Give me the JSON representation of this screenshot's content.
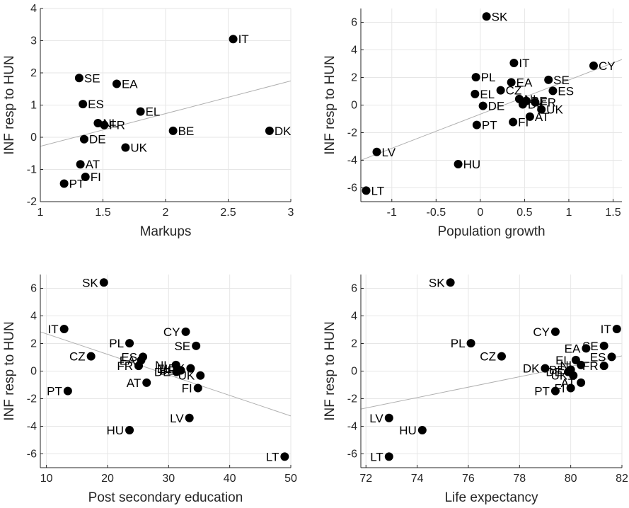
{
  "chart_data": [
    {
      "type": "scatter",
      "xlabel": "Markups",
      "ylabel": "INF resp to HUN",
      "xlim": [
        1,
        3
      ],
      "ylim": [
        -2,
        4
      ],
      "xticks": [
        1,
        1.5,
        2,
        2.5,
        3
      ],
      "yticks": [
        -2,
        -1,
        0,
        1,
        2,
        3,
        4
      ],
      "xtick_labels": [
        "1",
        "1.5",
        "2",
        "2.5",
        "3"
      ],
      "ytick_labels": [
        "-2",
        "-1",
        "0",
        "1",
        "2",
        "3",
        "4"
      ],
      "grid": true,
      "fit_line": [
        [
          1,
          -0.28
        ],
        [
          3,
          1.75
        ]
      ],
      "points": [
        {
          "label": "IT",
          "x": 2.54,
          "y": 3.05,
          "pos": "right"
        },
        {
          "label": "SE",
          "x": 1.31,
          "y": 1.84,
          "pos": "right"
        },
        {
          "label": "EA",
          "x": 1.61,
          "y": 1.66,
          "pos": "right"
        },
        {
          "label": "ES",
          "x": 1.34,
          "y": 1.03,
          "pos": "right"
        },
        {
          "label": "EL",
          "x": 1.8,
          "y": 0.8,
          "pos": "right"
        },
        {
          "label": "NL",
          "x": 1.46,
          "y": 0.44,
          "pos": "right"
        },
        {
          "label": "FR",
          "x": 1.51,
          "y": 0.38,
          "pos": "right"
        },
        {
          "label": "BE",
          "x": 2.06,
          "y": 0.2,
          "pos": "right"
        },
        {
          "label": "DK",
          "x": 2.83,
          "y": 0.2,
          "pos": "right"
        },
        {
          "label": "DE",
          "x": 1.35,
          "y": -0.06,
          "pos": "right"
        },
        {
          "label": "UK",
          "x": 1.68,
          "y": -0.32,
          "pos": "right"
        },
        {
          "label": "AT",
          "x": 1.32,
          "y": -0.84,
          "pos": "right"
        },
        {
          "label": "FI",
          "x": 1.36,
          "y": -1.23,
          "pos": "right"
        },
        {
          "label": "PT",
          "x": 1.19,
          "y": -1.44,
          "pos": "right"
        }
      ]
    },
    {
      "type": "scatter",
      "xlabel": "Population growth",
      "ylabel": "INF resp to HUN",
      "xlim": [
        -1.35,
        1.6
      ],
      "ylim": [
        -7,
        7
      ],
      "xticks": [
        -1,
        -0.5,
        0,
        0.5,
        1,
        1.5
      ],
      "yticks": [
        -6,
        -4,
        -2,
        0,
        2,
        4,
        6
      ],
      "xtick_labels": [
        "-1",
        "-0.5",
        "0",
        "0.5",
        "1",
        "1.5"
      ],
      "ytick_labels": [
        "-6",
        "-4",
        "-2",
        "0",
        "2",
        "4",
        "6"
      ],
      "grid": true,
      "fit_line": [
        [
          -1.35,
          -4.0
        ],
        [
          1.6,
          3.3
        ]
      ],
      "points": [
        {
          "label": "SK",
          "x": 0.07,
          "y": 6.42,
          "pos": "right"
        },
        {
          "label": "IT",
          "x": 0.38,
          "y": 3.05,
          "pos": "right"
        },
        {
          "label": "CY",
          "x": 1.28,
          "y": 2.85,
          "pos": "right"
        },
        {
          "label": "PL",
          "x": -0.05,
          "y": 2.02,
          "pos": "right"
        },
        {
          "label": "SE",
          "x": 0.77,
          "y": 1.83,
          "pos": "right"
        },
        {
          "label": "EA",
          "x": 0.35,
          "y": 1.65,
          "pos": "right"
        },
        {
          "label": "CZ",
          "x": 0.23,
          "y": 1.07,
          "pos": "right"
        },
        {
          "label": "ES",
          "x": 0.82,
          "y": 1.03,
          "pos": "right"
        },
        {
          "label": "EL",
          "x": -0.06,
          "y": 0.8,
          "pos": "right"
        },
        {
          "label": "NL",
          "x": 0.44,
          "y": 0.44,
          "pos": "right"
        },
        {
          "label": "BE",
          "x": 0.52,
          "y": 0.3,
          "pos": "right"
        },
        {
          "label": "FR",
          "x": 0.62,
          "y": 0.2,
          "pos": "right"
        },
        {
          "label": "DK",
          "x": 0.48,
          "y": 0.05,
          "pos": "right"
        },
        {
          "label": "DE",
          "x": 0.03,
          "y": -0.06,
          "pos": "right"
        },
        {
          "label": "UK",
          "x": 0.69,
          "y": -0.32,
          "pos": "right"
        },
        {
          "label": "AT",
          "x": 0.56,
          "y": -0.84,
          "pos": "right"
        },
        {
          "label": "FI",
          "x": 0.37,
          "y": -1.23,
          "pos": "right"
        },
        {
          "label": "PT",
          "x": -0.04,
          "y": -1.44,
          "pos": "right"
        },
        {
          "label": "LV",
          "x": -1.17,
          "y": -3.4,
          "pos": "right"
        },
        {
          "label": "HU",
          "x": -0.25,
          "y": -4.28,
          "pos": "right"
        },
        {
          "label": "LT",
          "x": -1.29,
          "y": -6.2,
          "pos": "right"
        }
      ]
    },
    {
      "type": "scatter",
      "xlabel": "Post secondary education",
      "ylabel": "INF resp to HUN",
      "xlim": [
        9,
        50
      ],
      "ylim": [
        -7,
        7
      ],
      "xticks": [
        10,
        20,
        30,
        40,
        50
      ],
      "yticks": [
        -6,
        -4,
        -2,
        0,
        2,
        4,
        6
      ],
      "xtick_labels": [
        "10",
        "20",
        "30",
        "40",
        "50"
      ],
      "ytick_labels": [
        "-6",
        "-4",
        "-2",
        "0",
        "2",
        "4",
        "6"
      ],
      "grid": true,
      "fit_line": [
        [
          9,
          2.85
        ],
        [
          50,
          -3.25
        ]
      ],
      "points": [
        {
          "label": "SK",
          "x": 19.4,
          "y": 6.42,
          "pos": "left"
        },
        {
          "label": "IT",
          "x": 12.9,
          "y": 3.05,
          "pos": "left"
        },
        {
          "label": "CY",
          "x": 32.8,
          "y": 2.85,
          "pos": "left"
        },
        {
          "label": "PL",
          "x": 23.6,
          "y": 2.02,
          "pos": "left"
        },
        {
          "label": "SE",
          "x": 34.5,
          "y": 1.83,
          "pos": "left"
        },
        {
          "label": "CZ",
          "x": 17.3,
          "y": 1.07,
          "pos": "left"
        },
        {
          "label": "ES",
          "x": 25.8,
          "y": 1.03,
          "pos": "left"
        },
        {
          "label": "EA",
          "x": 25.5,
          "y": 0.78,
          "pos": "left"
        },
        {
          "label": "FR",
          "x": 25.1,
          "y": 0.38,
          "pos": "left"
        },
        {
          "label": "NL",
          "x": 31.2,
          "y": 0.44,
          "pos": "left"
        },
        {
          "label": "EL",
          "x": 31.4,
          "y": 0.18,
          "pos": "left"
        },
        {
          "label": "BE",
          "x": 32.0,
          "y": 0.05,
          "pos": "left"
        },
        {
          "label": "DK",
          "x": 33.6,
          "y": 0.2,
          "pos": "left"
        },
        {
          "label": "DE",
          "x": 31.3,
          "y": -0.06,
          "pos": "left"
        },
        {
          "label": "UK",
          "x": 35.2,
          "y": -0.32,
          "pos": "left"
        },
        {
          "label": "AT",
          "x": 26.4,
          "y": -0.84,
          "pos": "left"
        },
        {
          "label": "FI",
          "x": 34.8,
          "y": -1.23,
          "pos": "left"
        },
        {
          "label": "PT",
          "x": 13.5,
          "y": -1.44,
          "pos": "left"
        },
        {
          "label": "LV",
          "x": 33.4,
          "y": -3.4,
          "pos": "left"
        },
        {
          "label": "HU",
          "x": 23.6,
          "y": -4.28,
          "pos": "left"
        },
        {
          "label": "LT",
          "x": 49.0,
          "y": -6.2,
          "pos": "left"
        }
      ]
    },
    {
      "type": "scatter",
      "xlabel": "Life expectancy",
      "ylabel": "INF resp to HUN",
      "xlim": [
        71.8,
        82.0
      ],
      "ylim": [
        -7,
        7
      ],
      "xticks": [
        72,
        74,
        76,
        78,
        80,
        82
      ],
      "yticks": [
        -6,
        -4,
        -2,
        0,
        2,
        4,
        6
      ],
      "xtick_labels": [
        "72",
        "74",
        "76",
        "78",
        "80",
        "82"
      ],
      "ytick_labels": [
        "-6",
        "-4",
        "-2",
        "0",
        "2",
        "4",
        "6"
      ],
      "grid": true,
      "fit_line": [
        [
          71.8,
          -2.75
        ],
        [
          82.0,
          1.1
        ]
      ],
      "points": [
        {
          "label": "SK",
          "x": 75.3,
          "y": 6.42,
          "pos": "left"
        },
        {
          "label": "IT",
          "x": 81.8,
          "y": 3.05,
          "pos": "left"
        },
        {
          "label": "CY",
          "x": 79.4,
          "y": 2.85,
          "pos": "left"
        },
        {
          "label": "PL",
          "x": 76.1,
          "y": 2.02,
          "pos": "left"
        },
        {
          "label": "SE",
          "x": 81.3,
          "y": 1.83,
          "pos": "left"
        },
        {
          "label": "EA",
          "x": 80.6,
          "y": 1.65,
          "pos": "left"
        },
        {
          "label": "CZ",
          "x": 77.3,
          "y": 1.07,
          "pos": "left"
        },
        {
          "label": "ES",
          "x": 81.6,
          "y": 1.03,
          "pos": "left"
        },
        {
          "label": "EL",
          "x": 80.2,
          "y": 0.8,
          "pos": "left"
        },
        {
          "label": "FR",
          "x": 81.3,
          "y": 0.38,
          "pos": "left"
        },
        {
          "label": "NL",
          "x": 80.4,
          "y": 0.44,
          "pos": "left"
        },
        {
          "label": "DK",
          "x": 79.0,
          "y": 0.2,
          "pos": "left"
        },
        {
          "label": "BE",
          "x": 80.0,
          "y": 0.1,
          "pos": "left"
        },
        {
          "label": "DE",
          "x": 79.9,
          "y": -0.06,
          "pos": "left"
        },
        {
          "label": "UK",
          "x": 80.1,
          "y": -0.32,
          "pos": "left"
        },
        {
          "label": "AT",
          "x": 80.4,
          "y": -0.84,
          "pos": "left"
        },
        {
          "label": "FI",
          "x": 80.0,
          "y": -1.23,
          "pos": "left"
        },
        {
          "label": "PT",
          "x": 79.4,
          "y": -1.44,
          "pos": "left"
        },
        {
          "label": "LV",
          "x": 72.9,
          "y": -3.4,
          "pos": "left"
        },
        {
          "label": "HU",
          "x": 74.2,
          "y": -4.28,
          "pos": "left"
        },
        {
          "label": "LT",
          "x": 72.9,
          "y": -6.2,
          "pos": "left"
        }
      ]
    }
  ],
  "colors": {
    "marker": "#000000",
    "grid": "#e6e6e6",
    "axis": "#262626",
    "fit_line": "#b0b0b0"
  }
}
